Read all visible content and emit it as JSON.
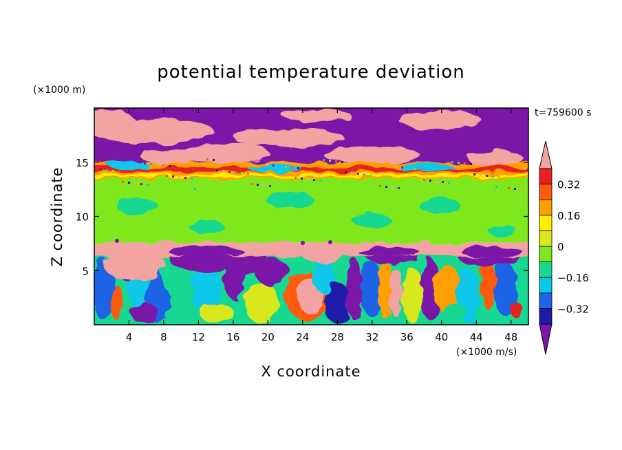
{
  "chart_data": {
    "type": "heatmap",
    "title": "potential temperature deviation",
    "xlabel": "X coordinate",
    "ylabel": "Z coordinate",
    "x_unit": "(×1000 m/s)",
    "y_unit": "(×1000 m)",
    "time_label": "t=759600 s",
    "xlim": [
      0,
      50
    ],
    "ylim": [
      0,
      20
    ],
    "xticks": [
      4,
      8,
      12,
      16,
      20,
      24,
      28,
      32,
      36,
      40,
      44,
      48
    ],
    "yticks": [
      5,
      10,
      15
    ],
    "colorbar": {
      "levels": [
        -0.4,
        -0.32,
        -0.24,
        -0.16,
        -0.08,
        0,
        0.08,
        0.16,
        0.24,
        0.32,
        0.4
      ],
      "tick_labels": [
        "0.32",
        "0.16",
        "0",
        "−0.16",
        "−0.32"
      ],
      "tick_values": [
        0.32,
        0.16,
        0,
        -0.16,
        -0.32
      ],
      "colors": [
        "#7a16a8",
        "#1c1ca8",
        "#1e64e6",
        "#08c8e8",
        "#18d890",
        "#7ee81c",
        "#d8e81c",
        "#ffee00",
        "#ffa000",
        "#ff5a10",
        "#e82020",
        "#f4a3a3"
      ]
    },
    "bands": [
      {
        "z": [
          0,
          6.3
        ],
        "description_value": "mixed"
      },
      {
        "z": [
          6.3,
          7.6
        ],
        "value": 0.45
      },
      {
        "z": [
          7.6,
          13.5
        ],
        "value": 0.03
      },
      {
        "z": [
          13.5,
          15.0
        ],
        "value": 0.3
      },
      {
        "z": [
          15.0,
          20.0
        ],
        "value": "alternating"
      }
    ]
  }
}
